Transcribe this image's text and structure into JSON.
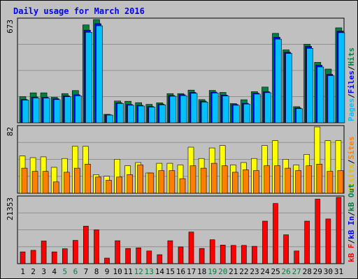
{
  "chart_data": {
    "type": "bar",
    "title": "Daily usage for March 2016",
    "days": [
      "1",
      "2",
      "3",
      "4",
      "5",
      "6",
      "7",
      "8",
      "9",
      "10",
      "11",
      "12",
      "13",
      "14",
      "15",
      "16",
      "17",
      "18",
      "19",
      "20",
      "21",
      "22",
      "23",
      "24",
      "25",
      "26",
      "27",
      "28",
      "29",
      "30",
      "31"
    ],
    "weekend_days": [
      "5",
      "6",
      "12",
      "13",
      "19",
      "20",
      "26",
      "27"
    ],
    "panels": [
      {
        "id": "top",
        "max_label": "673",
        "ymax": 673,
        "legend": [
          {
            "text": "Pages",
            "color": "#00c0ff"
          },
          {
            "text": "/",
            "color": "#000000"
          },
          {
            "text": "Files",
            "color": "#0000ff"
          },
          {
            "text": "/",
            "color": "#000000"
          },
          {
            "text": "Hits",
            "color": "#008040"
          }
        ],
        "series": [
          {
            "name": "Hits",
            "color": "#008040",
            "values": [
              170,
              195,
              195,
              166,
              190,
              210,
              638,
              673,
              55,
              142,
              140,
              131,
              120,
              130,
              190,
              190,
              213,
              151,
              211,
              198,
              125,
              150,
              203,
              233,
              583,
              475,
              105,
              512,
              394,
              350,
              619
            ]
          },
          {
            "name": "Files",
            "color": "#0000ff",
            "values": [
              152,
              168,
              166,
              157,
              176,
              183,
              604,
              646,
              52,
              131,
              119,
              114,
              106,
              122,
              178,
              183,
              198,
              141,
              200,
              180,
              119,
              127,
              193,
              203,
              558,
              460,
              97,
              498,
              375,
              316,
              598
            ]
          },
          {
            "name": "Pages",
            "color": "#00c0ff",
            "values": [
              148,
              162,
              161,
              151,
              170,
              176,
              590,
              632,
              50,
              126,
              114,
              109,
              102,
              117,
              173,
              177,
              192,
              135,
              194,
              174,
              114,
              122,
              187,
              196,
              545,
              452,
              92,
              485,
              364,
              307,
              587
            ]
          }
        ]
      },
      {
        "id": "middle",
        "max_label": "82",
        "ymax": 82,
        "legend": [
          {
            "text": "Visits",
            "color": "#e0c000"
          },
          {
            "text": "/",
            "color": "#000000"
          },
          {
            "text": "Sites",
            "color": "#ff8000"
          }
        ],
        "series": [
          {
            "name": "Visits",
            "color": "#ffff00",
            "values": [
              46,
              44,
              45,
              32,
              43,
              58,
              58,
              23,
              21,
              42,
              34,
              38,
              25,
              37,
              37,
              35,
              57,
              43,
              56,
              59,
              35,
              38,
              43,
              59,
              65,
              42,
              35,
              48,
              82,
              65,
              65
            ]
          },
          {
            "name": "Sites",
            "color": "#ff8000",
            "values": [
              31,
              27,
              27,
              14,
              26,
              31,
              36,
              20,
              16,
              20,
              23,
              35,
              25,
              28,
              28,
              18,
              34,
              31,
              37,
              34,
              26,
              29,
              28,
              34,
              34,
              31,
              28,
              34,
              36,
              27,
              28
            ]
          }
        ]
      },
      {
        "id": "bottom",
        "max_label": "21353",
        "ymax": 21353,
        "legend": [
          {
            "text": "kB F",
            "color": "#ff0000"
          },
          {
            "text": "/",
            "color": "#000000"
          },
          {
            "text": "kB In",
            "color": "#0000ff"
          },
          {
            "text": "/",
            "color": "#000000"
          },
          {
            "text": "kB Out",
            "color": "#008040"
          }
        ],
        "series": [
          {
            "name": "kB F",
            "color": "#ff0000",
            "values": [
              3800,
              4300,
              7300,
              3800,
              4800,
              7500,
              12100,
              10900,
              1800,
              7400,
              4900,
              5100,
              4100,
              2900,
              7400,
              5400,
              10200,
              4900,
              7700,
              6000,
              5900,
              5900,
              5600,
              13700,
              19400,
              9300,
              4100,
              13700,
              20800,
              14400,
              21353
            ]
          }
        ]
      }
    ]
  }
}
